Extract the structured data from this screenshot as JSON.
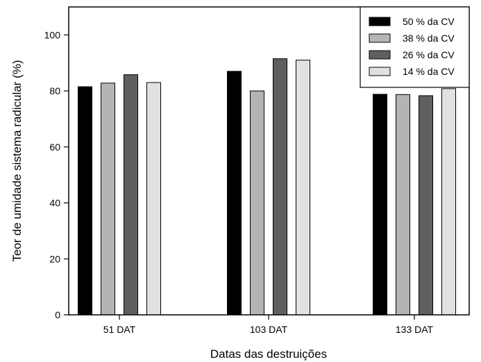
{
  "chart_data": {
    "type": "bar",
    "title": "",
    "xlabel": "Datas das destruições",
    "ylabel": "Teor de umidade sistema radicular (%)",
    "categories": [
      "51 DAT",
      "103 DAT",
      "133 DAT"
    ],
    "ylim": [
      0,
      110
    ],
    "yticks": [
      0,
      20,
      40,
      60,
      80,
      100
    ],
    "grid": false,
    "legend_position": "top-right",
    "series": [
      {
        "name": "50 % da CV",
        "color": "#000000",
        "values": [
          81.5,
          87.0,
          78.8
        ]
      },
      {
        "name": "38 % da CV",
        "color": "#b4b4b4",
        "values": [
          82.8,
          80.0,
          78.7
        ]
      },
      {
        "name": "26 % da CV",
        "color": "#5f5f5f",
        "values": [
          85.8,
          91.5,
          78.3
        ]
      },
      {
        "name": "14 % da CV",
        "color": "#e1e1e1",
        "values": [
          83.0,
          91.0,
          80.8
        ]
      }
    ]
  }
}
